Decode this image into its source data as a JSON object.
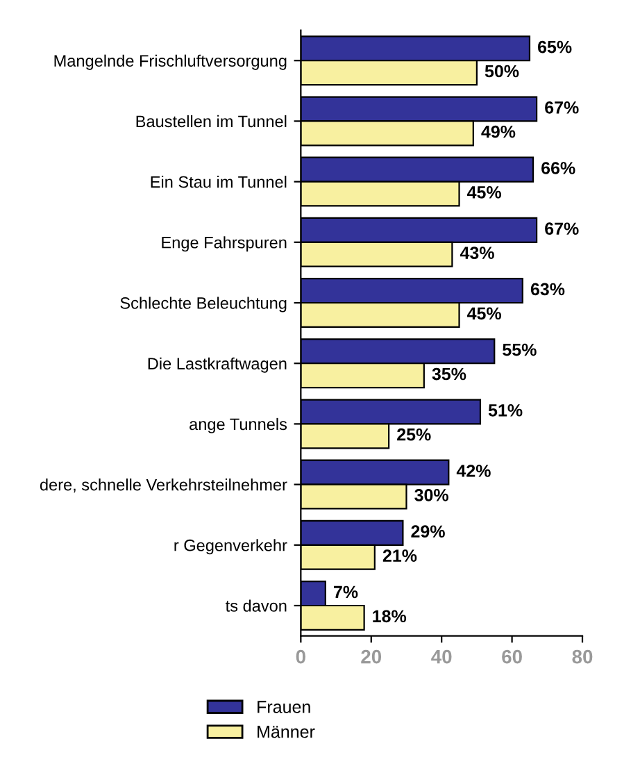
{
  "chart_data": {
    "type": "bar",
    "orientation": "horizontal",
    "categories": [
      "Mangelnde Frischluftversorgung",
      "Baustellen im Tunnel",
      "Ein Stau im Tunnel",
      "Enge Fahrspuren",
      "Schlechte Beleuchtung",
      "Die Lastkraftwagen",
      "ange Tunnels",
      "dere, schnelle Verkehrsteilnehmer",
      "r Gegenverkehr",
      "ts davon"
    ],
    "series": [
      {
        "name": "Frauen",
        "color": "#333399",
        "values": [
          65,
          67,
          66,
          67,
          63,
          55,
          51,
          42,
          29,
          7
        ],
        "value_labels": [
          "65%",
          "67%",
          "66%",
          "67%",
          "63%",
          "55%",
          "51%",
          "42%",
          "29%",
          "7%"
        ]
      },
      {
        "name": "Männer",
        "color": "#f8f0a0",
        "values": [
          50,
          49,
          45,
          43,
          45,
          35,
          25,
          30,
          21,
          18
        ],
        "value_labels": [
          "50%",
          "49%",
          "45%",
          "43%",
          "45%",
          "35%",
          "25%",
          "30%",
          "21%",
          "18%"
        ]
      }
    ],
    "xlim": [
      0,
      80
    ],
    "xticks": [
      0,
      20,
      40,
      60,
      80
    ],
    "grid": false,
    "legend": "bottom left"
  }
}
